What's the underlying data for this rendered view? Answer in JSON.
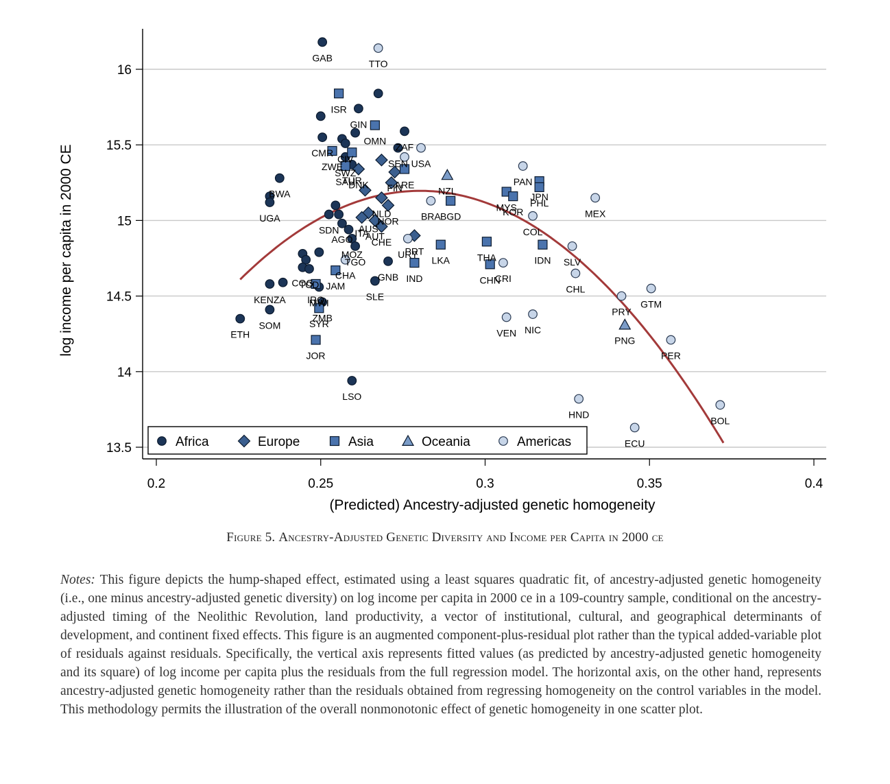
{
  "chart_data": {
    "type": "scatter",
    "xlabel": "(Predicted) Ancestry-adjusted genetic homogeneity",
    "ylabel": "log income per capita in 2000 CE",
    "xlim": [
      0.195,
      0.4
    ],
    "ylim": [
      13.42,
      16.26
    ],
    "xticks": [
      0.2,
      0.25,
      0.3,
      0.35,
      0.4
    ],
    "xtick_labels": [
      "0.2",
      "0.25",
      "0.3",
      "0.35",
      "0.4"
    ],
    "yticks": [
      13.5,
      14,
      14.5,
      15,
      15.5,
      16
    ],
    "ytick_labels": [
      "13.5",
      "14",
      "14.5",
      "15",
      "15.5",
      "16"
    ],
    "grid": "horizontal",
    "legend_position": "bottom-left inside",
    "series": [
      {
        "name": "Africa",
        "marker": "circle",
        "color": "#1c3557",
        "points": [
          {
            "x": 0.2505,
            "y": 16.18,
            "label": "GAB"
          },
          {
            "x": 0.2675,
            "y": 15.84,
            "label": ""
          },
          {
            "x": 0.2615,
            "y": 15.74,
            "label": "GIN"
          },
          {
            "x": 0.25,
            "y": 15.69,
            "label": ""
          },
          {
            "x": 0.2755,
            "y": 15.59,
            "label": "ZAF"
          },
          {
            "x": 0.2605,
            "y": 15.58,
            "label": ""
          },
          {
            "x": 0.2505,
            "y": 15.55,
            "label": "CMR"
          },
          {
            "x": 0.2565,
            "y": 15.54,
            "label": ""
          },
          {
            "x": 0.2575,
            "y": 15.51,
            "label": "CIV"
          },
          {
            "x": 0.2735,
            "y": 15.48,
            "label": "SEN"
          },
          {
            "x": 0.2575,
            "y": 15.42,
            "label": "SWZ"
          },
          {
            "x": 0.2595,
            "y": 15.37,
            "label": "TUR"
          },
          {
            "x": 0.2375,
            "y": 15.28,
            "label": "BWA"
          },
          {
            "x": 0.2345,
            "y": 15.16,
            "label": ""
          },
          {
            "x": 0.2345,
            "y": 15.12,
            "label": "UGA"
          },
          {
            "x": 0.2545,
            "y": 15.1,
            "label": ""
          },
          {
            "x": 0.2525,
            "y": 15.04,
            "label": "SDN"
          },
          {
            "x": 0.2555,
            "y": 15.04,
            "label": ""
          },
          {
            "x": 0.2565,
            "y": 14.98,
            "label": "AGO"
          },
          {
            "x": 0.2585,
            "y": 14.94,
            "label": ""
          },
          {
            "x": 0.2595,
            "y": 14.88,
            "label": "MOZ"
          },
          {
            "x": 0.2605,
            "y": 14.83,
            "label": "TGO"
          },
          {
            "x": 0.2495,
            "y": 14.79,
            "label": ""
          },
          {
            "x": 0.2445,
            "y": 14.78,
            "label": ""
          },
          {
            "x": 0.2455,
            "y": 14.74,
            "label": ""
          },
          {
            "x": 0.2445,
            "y": 14.69,
            "label": "COG"
          },
          {
            "x": 0.2465,
            "y": 14.68,
            "label": "TCD"
          },
          {
            "x": 0.2385,
            "y": 14.59,
            "label": ""
          },
          {
            "x": 0.2345,
            "y": 14.58,
            "label": "KENZA"
          },
          {
            "x": 0.2495,
            "y": 14.56,
            "label": "MWI"
          },
          {
            "x": 0.2345,
            "y": 14.41,
            "label": "SOM"
          },
          {
            "x": 0.2255,
            "y": 14.35,
            "label": "ETH"
          },
          {
            "x": 0.2505,
            "y": 14.46,
            "label": "ZMB"
          },
          {
            "x": 0.2705,
            "y": 14.73,
            "label": "GNB"
          },
          {
            "x": 0.2665,
            "y": 14.6,
            "label": "SLE"
          },
          {
            "x": 0.2595,
            "y": 13.94,
            "label": "LSO"
          }
        ]
      },
      {
        "name": "Europe",
        "marker": "diamond",
        "color": "#3b5f8f",
        "points": [
          {
            "x": 0.2685,
            "y": 15.4,
            "label": ""
          },
          {
            "x": 0.2615,
            "y": 15.34,
            "label": "DNK"
          },
          {
            "x": 0.2725,
            "y": 15.32,
            "label": "FIN"
          },
          {
            "x": 0.2715,
            "y": 15.25,
            "label": ""
          },
          {
            "x": 0.2635,
            "y": 15.2,
            "label": ""
          },
          {
            "x": 0.2685,
            "y": 15.15,
            "label": "NLD"
          },
          {
            "x": 0.2705,
            "y": 15.1,
            "label": "NOR"
          },
          {
            "x": 0.2645,
            "y": 15.05,
            "label": "AUS"
          },
          {
            "x": 0.2625,
            "y": 15.02,
            "label": "ITA"
          },
          {
            "x": 0.2665,
            "y": 15.0,
            "label": "AUT"
          },
          {
            "x": 0.2685,
            "y": 14.96,
            "label": "CHE"
          },
          {
            "x": 0.2785,
            "y": 14.9,
            "label": "PRT"
          }
        ]
      },
      {
        "name": "Asia",
        "marker": "square",
        "color": "#4a73ad",
        "points": [
          {
            "x": 0.2555,
            "y": 15.84,
            "label": "ISR"
          },
          {
            "x": 0.2665,
            "y": 15.63,
            "label": "OMN"
          },
          {
            "x": 0.2535,
            "y": 15.46,
            "label": "ZWE"
          },
          {
            "x": 0.2595,
            "y": 15.45,
            "label": ""
          },
          {
            "x": 0.2755,
            "y": 15.34,
            "label": "ARE"
          },
          {
            "x": 0.2575,
            "y": 15.36,
            "label": "SAU"
          },
          {
            "x": 0.2895,
            "y": 15.13,
            "label": "BGD"
          },
          {
            "x": 0.3065,
            "y": 15.19,
            "label": "MYS"
          },
          {
            "x": 0.3085,
            "y": 15.16,
            "label": "KOR"
          },
          {
            "x": 0.3165,
            "y": 15.26,
            "label": "JPN"
          },
          {
            "x": 0.3165,
            "y": 15.22,
            "label": "PHL"
          },
          {
            "x": 0.2865,
            "y": 14.84,
            "label": "LKA"
          },
          {
            "x": 0.3005,
            "y": 14.86,
            "label": "THA"
          },
          {
            "x": 0.3015,
            "y": 14.71,
            "label": "CHN"
          },
          {
            "x": 0.3175,
            "y": 14.84,
            "label": "IDN"
          },
          {
            "x": 0.2785,
            "y": 14.72,
            "label": "IND"
          },
          {
            "x": 0.2545,
            "y": 14.67,
            "label": "JAM"
          },
          {
            "x": 0.2485,
            "y": 14.58,
            "label": "IRQ"
          },
          {
            "x": 0.2495,
            "y": 14.42,
            "label": "SYR"
          },
          {
            "x": 0.2485,
            "y": 14.21,
            "label": "JOR"
          }
        ]
      },
      {
        "name": "Oceania",
        "marker": "triangle",
        "color": "#7b9cc8",
        "points": [
          {
            "x": 0.2885,
            "y": 15.3,
            "label": "NZL"
          },
          {
            "x": 0.3425,
            "y": 14.31,
            "label": "PNG"
          }
        ]
      },
      {
        "name": "Americas",
        "marker": "circle",
        "color": "#c7d5e8",
        "points": [
          {
            "x": 0.2675,
            "y": 16.14,
            "label": "TTO"
          },
          {
            "x": 0.2805,
            "y": 15.48,
            "label": "USA"
          },
          {
            "x": 0.2755,
            "y": 15.42,
            "label": ""
          },
          {
            "x": 0.2835,
            "y": 15.13,
            "label": "BRA"
          },
          {
            "x": 0.2765,
            "y": 14.88,
            "label": "URY"
          },
          {
            "x": 0.2575,
            "y": 14.74,
            "label": "CHA"
          },
          {
            "x": 0.3055,
            "y": 14.72,
            "label": "CRI"
          },
          {
            "x": 0.3115,
            "y": 15.36,
            "label": "PAN"
          },
          {
            "x": 0.3145,
            "y": 15.03,
            "label": "COL"
          },
          {
            "x": 0.3335,
            "y": 15.15,
            "label": "MEX"
          },
          {
            "x": 0.3265,
            "y": 14.83,
            "label": "SLV"
          },
          {
            "x": 0.3275,
            "y": 14.65,
            "label": "CHL"
          },
          {
            "x": 0.3415,
            "y": 14.5,
            "label": "PRY"
          },
          {
            "x": 0.3505,
            "y": 14.55,
            "label": "GTM"
          },
          {
            "x": 0.3065,
            "y": 14.36,
            "label": "VEN"
          },
          {
            "x": 0.3145,
            "y": 14.38,
            "label": "NIC"
          },
          {
            "x": 0.3565,
            "y": 14.21,
            "label": "PER"
          },
          {
            "x": 0.3285,
            "y": 13.82,
            "label": "HND"
          },
          {
            "x": 0.3455,
            "y": 13.63,
            "label": "ECU"
          },
          {
            "x": 0.3715,
            "y": 13.78,
            "label": "BOL"
          }
        ]
      }
    ],
    "fit_line": {
      "type": "quadratic",
      "color": "#a33a3a",
      "x_range": [
        0.2255,
        0.3725
      ],
      "points": [
        [
          0.2255,
          14.63
        ],
        [
          0.24,
          14.86
        ],
        [
          0.26,
          15.11
        ],
        [
          0.28,
          15.19
        ],
        [
          0.3,
          15.12
        ],
        [
          0.32,
          14.89
        ],
        [
          0.34,
          14.5
        ],
        [
          0.36,
          13.98
        ],
        [
          0.3725,
          13.5
        ]
      ]
    }
  },
  "caption": {
    "figure_number": "Figure 5.",
    "title": "Ancestry-Adjusted Genetic Diversity and Income per Capita in 2000 ce"
  },
  "notes": {
    "lead": "Notes:",
    "text": "This figure depicts the hump-shaped effect, estimated using a least squares quadratic fit, of ancestry-adjusted genetic homogeneity (i.e., one minus ancestry-adjusted genetic diversity) on log income per capita in 2000 ce in a 109-country sample, conditional on the ancestry-adjusted timing of the Neolithic Revolution, land productivity, a vector of institutional, cultural, and geographical determinants of development, and continent fixed effects. This figure is an augmented component-plus-residual plot rather than the typical added-variable plot of residuals against residuals. Specifically, the vertical axis represents fitted values (as predicted by ancestry-adjusted genetic homogeneity and its square) of log income per capita plus the residuals from the full regression model. The horizontal axis, on the other hand, represents ancestry-adjusted genetic homogeneity rather than the residuals obtained from regressing homogeneity on the control variables in the model. This methodology permits the illustration of the overall nonmonotonic effect of genetic homogeneity in one scatter plot."
  }
}
